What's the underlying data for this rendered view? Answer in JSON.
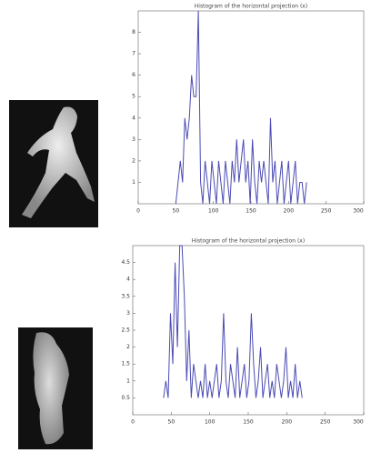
{
  "chart_data": [
    {
      "type": "line",
      "title": "Histogram of the horizontal projection (x)",
      "color": "#4b4bb5",
      "x": [
        50,
        53,
        56,
        59,
        62,
        65,
        68,
        71,
        74,
        77,
        80,
        83,
        86,
        89,
        92,
        95,
        98,
        101,
        104,
        107,
        110,
        113,
        116,
        119,
        122,
        125,
        128,
        131,
        134,
        137,
        140,
        143,
        146,
        149,
        152,
        155,
        158,
        161,
        164,
        167,
        170,
        173,
        176,
        179,
        182,
        185,
        188,
        191,
        194,
        197,
        200,
        203,
        206,
        209,
        212,
        215,
        218,
        221,
        224
      ],
      "values": [
        0,
        1,
        2,
        1,
        4,
        3,
        4,
        6,
        5,
        5,
        9,
        1,
        0,
        2,
        1,
        0,
        2,
        1,
        0,
        2,
        1,
        0,
        2,
        1,
        0,
        2,
        1,
        3,
        1,
        2,
        3,
        1,
        2,
        0,
        3,
        1,
        0,
        2,
        1,
        2,
        1,
        0,
        4,
        1,
        2,
        0,
        1,
        2,
        0,
        1,
        2,
        0,
        1,
        2,
        0,
        1,
        1,
        0,
        1
      ],
      "xlim": [
        0,
        300
      ],
      "xticks": [
        0,
        50,
        100,
        150,
        200,
        250,
        300
      ],
      "ylim": [
        0,
        9
      ],
      "yticks": [
        1,
        2,
        3,
        4,
        5,
        6,
        7,
        8
      ]
    },
    {
      "type": "line",
      "title": "Histogram of the horizontal projection (x)",
      "color": "#4b4bb5",
      "x": [
        40,
        43,
        46,
        49,
        52,
        55,
        58,
        61,
        64,
        67,
        70,
        73,
        76,
        79,
        82,
        85,
        88,
        91,
        94,
        97,
        100,
        103,
        106,
        109,
        112,
        115,
        118,
        121,
        124,
        127,
        130,
        133,
        136,
        139,
        142,
        145,
        148,
        151,
        154,
        157,
        160,
        163,
        166,
        169,
        172,
        175,
        178,
        181,
        184,
        187,
        190,
        193,
        196,
        199,
        202,
        205,
        208,
        211,
        214,
        217,
        220
      ],
      "values": [
        0.5,
        1,
        0.5,
        3,
        1.5,
        4.5,
        2,
        5,
        5,
        3.5,
        1,
        2.5,
        0.5,
        1.5,
        1,
        0.5,
        1,
        0.5,
        1.5,
        0.5,
        1,
        0.5,
        1,
        1.5,
        0.5,
        1,
        3,
        1,
        0.5,
        1.5,
        1,
        0.5,
        2,
        0.5,
        1,
        1.5,
        0.5,
        1,
        3,
        1.5,
        0.5,
        1,
        2,
        0.5,
        1,
        1.5,
        0.5,
        1,
        0.5,
        1.5,
        1,
        0.5,
        1,
        2,
        0.5,
        1,
        0.5,
        1.5,
        0.5,
        1,
        0.5
      ],
      "xlim": [
        0,
        300
      ],
      "xticks": [
        0,
        50,
        100,
        150,
        200,
        250,
        300
      ],
      "ylim": [
        0,
        5
      ],
      "yticks": [
        0.5,
        1,
        1.5,
        2,
        2.5,
        3,
        3.5,
        4,
        4.5
      ]
    }
  ]
}
